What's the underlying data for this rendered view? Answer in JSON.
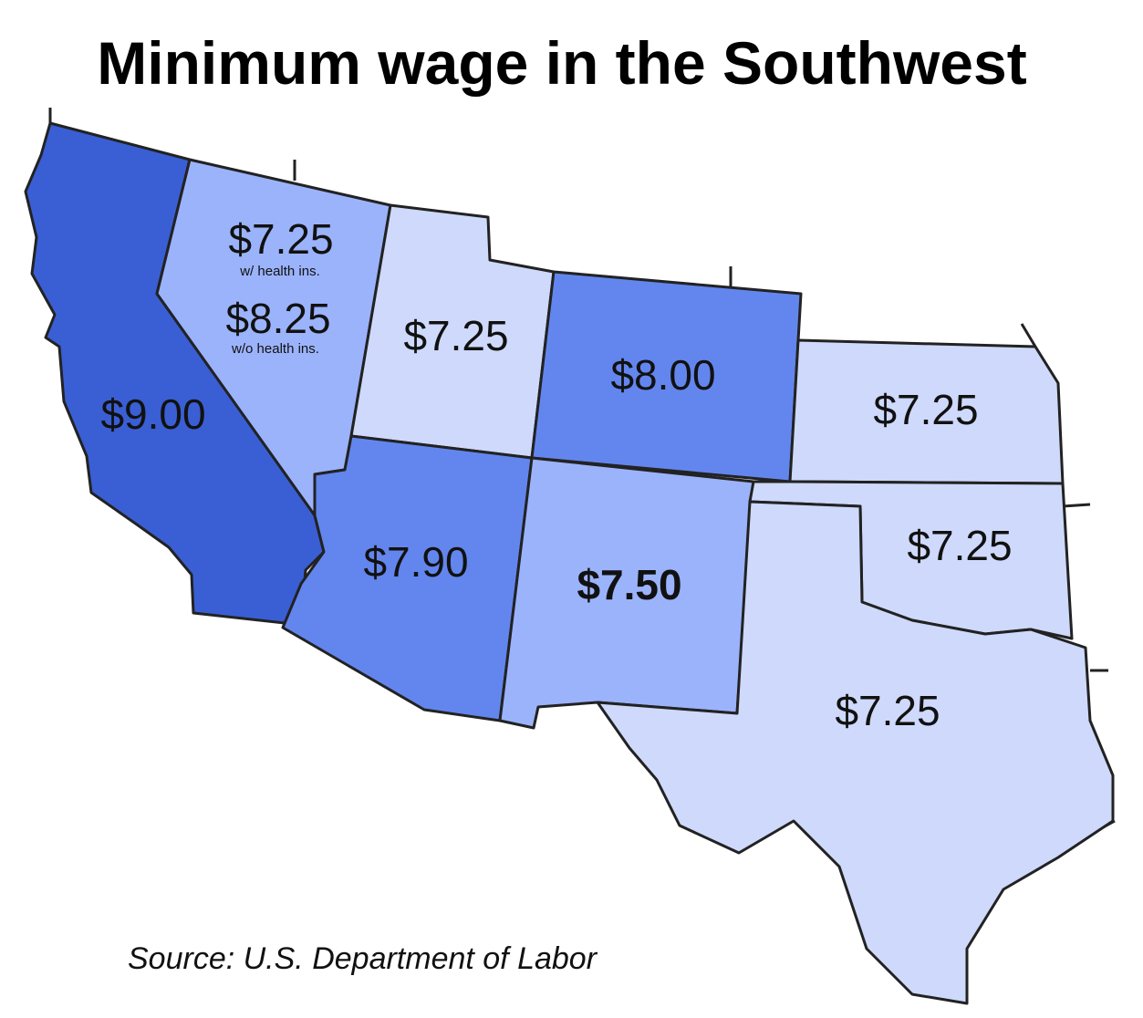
{
  "title": "Minimum wage in the Southwest",
  "states": [
    {
      "wages": [
        {
          "wage": "$9.00"
        }
      ]
    },
    {
      "wages": [
        {
          "wage": "$7.25",
          "note": "w/ health ins."
        },
        {
          "wage": "$8.25",
          "note": "w/o health ins."
        }
      ]
    },
    {
      "wages": [
        {
          "wage": "$7.25"
        }
      ]
    },
    {
      "wages": [
        {
          "wage": "$8.00"
        }
      ]
    },
    {
      "wages": [
        {
          "wage": "$7.25"
        }
      ]
    },
    {
      "wages": [
        {
          "wage": "$7.90"
        }
      ]
    },
    {
      "wages": [
        {
          "wage": "$7.50"
        }
      ]
    },
    {
      "wages": [
        {
          "wage": "$7.25"
        }
      ]
    },
    {
      "wages": [
        {
          "wage": "$7.25"
        }
      ]
    }
  ],
  "source": "Source: U.S. Department of Labor"
}
